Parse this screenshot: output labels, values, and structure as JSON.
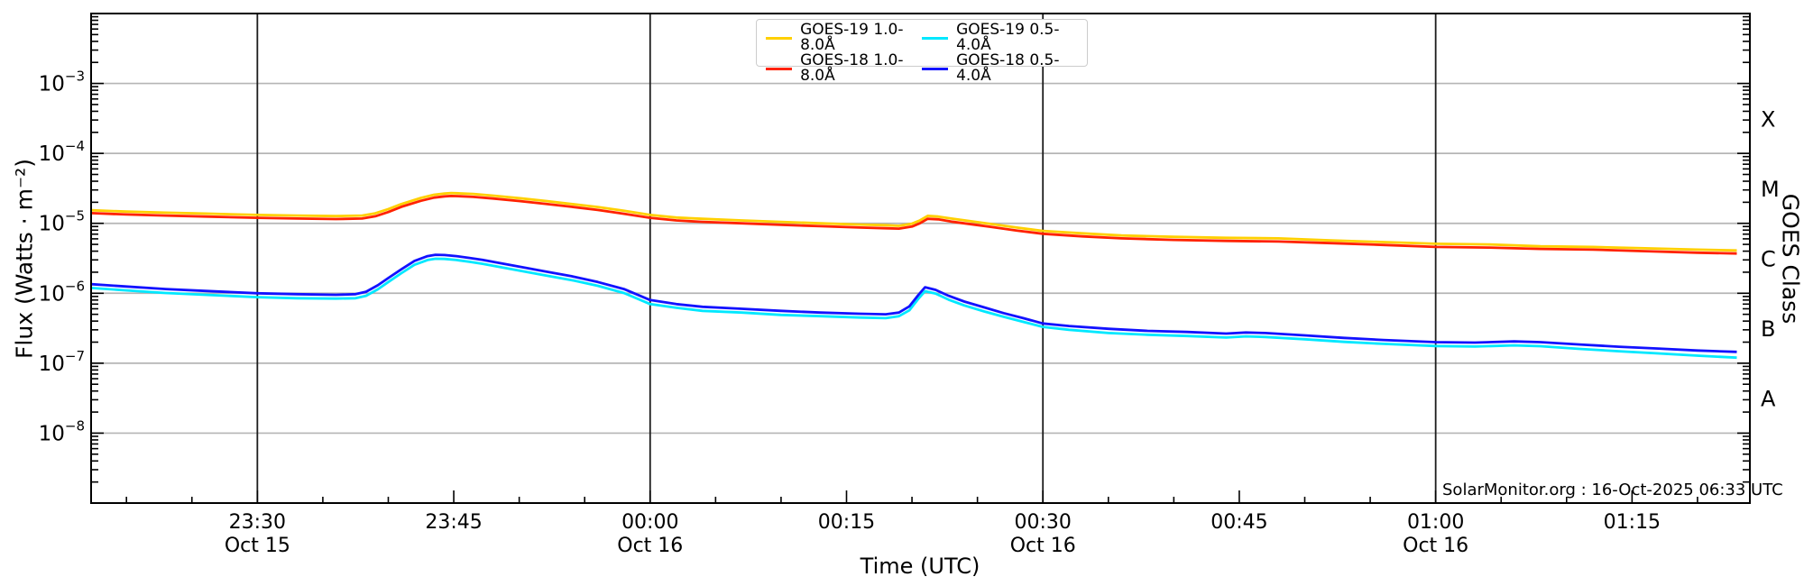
{
  "figure": {
    "xlabel": "Time (UTC)",
    "ylabel": "Flux (Watts · m⁻²)",
    "ylabel_right": "GOES Class",
    "annotation": "SolarMonitor.org : 16-Oct-2025 06:33 UTC"
  },
  "chart_data": {
    "type": "line",
    "title": "",
    "xlabel": "Time (UTC)",
    "ylabel": "Flux (Watts · m⁻²)",
    "ylabel_right": "GOES Class",
    "annotation": "SolarMonitor.org : 16-Oct-2025 06:33 UTC",
    "legend_position": "top-center",
    "grid": true,
    "x_axis": {
      "unit": "minutes after 2025-10-15 23:00 UTC",
      "min": 17.3,
      "max": 144,
      "minor_tick_step_minutes": 5,
      "ticks": [
        {
          "t": 30,
          "label": "23:30",
          "date": "Oct 15"
        },
        {
          "t": 45,
          "label": "23:45",
          "date": ""
        },
        {
          "t": 60,
          "label": "00:00",
          "date": "Oct 16"
        },
        {
          "t": 75,
          "label": "00:15",
          "date": ""
        },
        {
          "t": 90,
          "label": "00:30",
          "date": "Oct 16"
        },
        {
          "t": 105,
          "label": "00:45",
          "date": ""
        },
        {
          "t": 120,
          "label": "01:00",
          "date": "Oct 16"
        },
        {
          "t": 135,
          "label": "01:15",
          "date": ""
        }
      ],
      "vertical_gridlines_t": [
        30,
        60,
        90,
        120
      ]
    },
    "y_axis": {
      "scale": "log10",
      "min_exp": -9,
      "max_exp": -2,
      "tick_exponents": [
        -3,
        -4,
        -5,
        -6,
        -7,
        -8
      ],
      "gridline_exponents": [
        -3,
        -4,
        -5,
        -6,
        -7,
        -8
      ]
    },
    "right_axis_classes": [
      {
        "label": "X",
        "center_exp": -3.5
      },
      {
        "label": "M",
        "center_exp": -4.5
      },
      {
        "label": "C",
        "center_exp": -5.5
      },
      {
        "label": "B",
        "center_exp": -6.5
      },
      {
        "label": "A",
        "center_exp": -7.5
      }
    ],
    "colors": {
      "grid_h": "#b5b5b5",
      "grid_v": "#1c1c1c",
      "frame": "#000000",
      "text": "#000000"
    },
    "series": [
      {
        "name": "GOES-19 1.0-8.0Å",
        "color": "#ffd000",
        "points": [
          [
            17.3,
            1.54e-05
          ],
          [
            20,
            1.47e-05
          ],
          [
            23,
            1.42e-05
          ],
          [
            26,
            1.38e-05
          ],
          [
            30,
            1.32e-05
          ],
          [
            33,
            1.29e-05
          ],
          [
            36,
            1.27e-05
          ],
          [
            38,
            1.29e-05
          ],
          [
            39,
            1.39e-05
          ],
          [
            40,
            1.6e-05
          ],
          [
            41,
            1.89e-05
          ],
          [
            42.5,
            2.31e-05
          ],
          [
            43.5,
            2.56e-05
          ],
          [
            44.3,
            2.67e-05
          ],
          [
            44.8,
            2.71e-05
          ],
          [
            45.5,
            2.68e-05
          ],
          [
            46.5,
            2.63e-05
          ],
          [
            48,
            2.49e-05
          ],
          [
            50,
            2.29e-05
          ],
          [
            52,
            2.09e-05
          ],
          [
            54,
            1.89e-05
          ],
          [
            56,
            1.71e-05
          ],
          [
            58,
            1.51e-05
          ],
          [
            60,
            1.32e-05
          ],
          [
            62,
            1.21e-05
          ],
          [
            64,
            1.16e-05
          ],
          [
            67,
            1.1e-05
          ],
          [
            70,
            1.05e-05
          ],
          [
            73,
            1e-05
          ],
          [
            76,
            9.6e-06
          ],
          [
            78,
            9.4e-06
          ],
          [
            79,
            9.2e-06
          ],
          [
            80,
            9.9e-06
          ],
          [
            80.6,
            1.1e-05
          ],
          [
            81.2,
            1.28e-05
          ],
          [
            82,
            1.25e-05
          ],
          [
            83,
            1.17e-05
          ],
          [
            84.5,
            1.07e-05
          ],
          [
            86,
            9.8e-06
          ],
          [
            88,
            8.7e-06
          ],
          [
            90,
            7.8e-06
          ],
          [
            93,
            7.2e-06
          ],
          [
            96,
            6.7e-06
          ],
          [
            100,
            6.4e-06
          ],
          [
            104,
            6.2e-06
          ],
          [
            108,
            6.1e-06
          ],
          [
            112,
            5.7e-06
          ],
          [
            116,
            5.4e-06
          ],
          [
            120,
            5.1e-06
          ],
          [
            124,
            5e-06
          ],
          [
            128,
            4.7e-06
          ],
          [
            132,
            4.6e-06
          ],
          [
            136,
            4.4e-06
          ],
          [
            140,
            4.2e-06
          ],
          [
            143,
            4.1e-06
          ]
        ]
      },
      {
        "name": "GOES-18 1.0-8.0Å",
        "color": "#ff2200",
        "points": [
          [
            17.3,
            1.4e-05
          ],
          [
            20,
            1.34e-05
          ],
          [
            23,
            1.29e-05
          ],
          [
            26,
            1.25e-05
          ],
          [
            30,
            1.2e-05
          ],
          [
            33,
            1.17e-05
          ],
          [
            36,
            1.15e-05
          ],
          [
            38,
            1.17e-05
          ],
          [
            39,
            1.26e-05
          ],
          [
            40,
            1.45e-05
          ],
          [
            41,
            1.72e-05
          ],
          [
            42.5,
            2.1e-05
          ],
          [
            43.5,
            2.33e-05
          ],
          [
            44.3,
            2.43e-05
          ],
          [
            44.8,
            2.46e-05
          ],
          [
            45.5,
            2.44e-05
          ],
          [
            46.5,
            2.39e-05
          ],
          [
            48,
            2.26e-05
          ],
          [
            50,
            2.08e-05
          ],
          [
            52,
            1.9e-05
          ],
          [
            54,
            1.72e-05
          ],
          [
            56,
            1.55e-05
          ],
          [
            58,
            1.37e-05
          ],
          [
            60,
            1.2e-05
          ],
          [
            62,
            1.1e-05
          ],
          [
            64,
            1.05e-05
          ],
          [
            67,
            1e-05
          ],
          [
            70,
            9.5e-06
          ],
          [
            73,
            9.1e-06
          ],
          [
            76,
            8.7e-06
          ],
          [
            78,
            8.5e-06
          ],
          [
            79,
            8.4e-06
          ],
          [
            80,
            9e-06
          ],
          [
            80.6,
            1e-05
          ],
          [
            81.2,
            1.16e-05
          ],
          [
            82,
            1.14e-05
          ],
          [
            83,
            1.06e-05
          ],
          [
            84.5,
            9.7e-06
          ],
          [
            86,
            8.9e-06
          ],
          [
            88,
            7.9e-06
          ],
          [
            90,
            7.1e-06
          ],
          [
            93,
            6.5e-06
          ],
          [
            96,
            6.1e-06
          ],
          [
            100,
            5.8e-06
          ],
          [
            104,
            5.6e-06
          ],
          [
            108,
            5.5e-06
          ],
          [
            112,
            5.2e-06
          ],
          [
            116,
            4.9e-06
          ],
          [
            120,
            4.6e-06
          ],
          [
            124,
            4.5e-06
          ],
          [
            128,
            4.3e-06
          ],
          [
            132,
            4.2e-06
          ],
          [
            136,
            4e-06
          ],
          [
            140,
            3.8e-06
          ],
          [
            143,
            3.7e-06
          ]
        ]
      },
      {
        "name": "GOES-19 0.5-4.0Å",
        "color": "#00e8ff",
        "points": [
          [
            17.3,
            1.19e-06
          ],
          [
            20,
            1.1e-06
          ],
          [
            23,
            1.01e-06
          ],
          [
            26,
            9.5e-07
          ],
          [
            30,
            8.8e-07
          ],
          [
            33,
            8.5e-07
          ],
          [
            36,
            8.4e-07
          ],
          [
            37.5,
            8.5e-07
          ],
          [
            38.3,
            9.2e-07
          ],
          [
            39.2,
            1.14e-06
          ],
          [
            40,
            1.45e-06
          ],
          [
            41,
            1.94e-06
          ],
          [
            42,
            2.55e-06
          ],
          [
            43,
            2.99e-06
          ],
          [
            43.6,
            3.12e-06
          ],
          [
            44.3,
            3.1e-06
          ],
          [
            45.2,
            2.99e-06
          ],
          [
            46.2,
            2.82e-06
          ],
          [
            47.2,
            2.64e-06
          ],
          [
            48.5,
            2.38e-06
          ],
          [
            50,
            2.11e-06
          ],
          [
            52,
            1.8e-06
          ],
          [
            54,
            1.54e-06
          ],
          [
            56,
            1.28e-06
          ],
          [
            58,
            1.01e-06
          ],
          [
            60,
            7e-07
          ],
          [
            62,
            6.2e-07
          ],
          [
            64,
            5.6e-07
          ],
          [
            67,
            5.3e-07
          ],
          [
            70,
            4.9e-07
          ],
          [
            73,
            4.7e-07
          ],
          [
            76,
            4.5e-07
          ],
          [
            78,
            4.4e-07
          ],
          [
            79,
            4.7e-07
          ],
          [
            79.8,
            5.7e-07
          ],
          [
            80.5,
            8.4e-07
          ],
          [
            81,
            1.07e-06
          ],
          [
            81.8,
            9.9e-07
          ],
          [
            82.8,
            8.1e-07
          ],
          [
            84,
            6.7e-07
          ],
          [
            85.5,
            5.5e-07
          ],
          [
            87,
            4.6e-07
          ],
          [
            88.5,
            3.9e-07
          ],
          [
            90,
            3.3e-07
          ],
          [
            92,
            3e-07
          ],
          [
            95,
            2.7e-07
          ],
          [
            98,
            2.55e-07
          ],
          [
            101,
            2.45e-07
          ],
          [
            104,
            2.33e-07
          ],
          [
            105.5,
            2.42e-07
          ],
          [
            107,
            2.37e-07
          ],
          [
            110,
            2.2e-07
          ],
          [
            113,
            2.02e-07
          ],
          [
            116,
            1.89e-07
          ],
          [
            120,
            1.76e-07
          ],
          [
            123,
            1.73e-07
          ],
          [
            126,
            1.8e-07
          ],
          [
            128,
            1.75e-07
          ],
          [
            131,
            1.6e-07
          ],
          [
            134,
            1.48e-07
          ],
          [
            137,
            1.38e-07
          ],
          [
            140,
            1.28e-07
          ],
          [
            143,
            1.2e-07
          ]
        ]
      },
      {
        "name": "GOES-18 0.5-4.0Å",
        "color": "#1212ff",
        "points": [
          [
            17.3,
            1.35e-06
          ],
          [
            20,
            1.25e-06
          ],
          [
            23,
            1.15e-06
          ],
          [
            26,
            1.08e-06
          ],
          [
            30,
            1e-06
          ],
          [
            33,
            9.7e-07
          ],
          [
            36,
            9.5e-07
          ],
          [
            37.5,
            9.7e-07
          ],
          [
            38.3,
            1.05e-06
          ],
          [
            39.2,
            1.3e-06
          ],
          [
            40,
            1.65e-06
          ],
          [
            41,
            2.2e-06
          ],
          [
            42,
            2.9e-06
          ],
          [
            43,
            3.4e-06
          ],
          [
            43.6,
            3.55e-06
          ],
          [
            44.3,
            3.52e-06
          ],
          [
            45.2,
            3.4e-06
          ],
          [
            46.2,
            3.2e-06
          ],
          [
            47.2,
            3e-06
          ],
          [
            48.5,
            2.7e-06
          ],
          [
            50,
            2.4e-06
          ],
          [
            52,
            2.05e-06
          ],
          [
            54,
            1.75e-06
          ],
          [
            56,
            1.45e-06
          ],
          [
            58,
            1.15e-06
          ],
          [
            60,
            8e-07
          ],
          [
            62,
            7e-07
          ],
          [
            64,
            6.4e-07
          ],
          [
            67,
            6e-07
          ],
          [
            70,
            5.6e-07
          ],
          [
            73,
            5.3e-07
          ],
          [
            76,
            5.1e-07
          ],
          [
            78,
            5e-07
          ],
          [
            79,
            5.3e-07
          ],
          [
            79.8,
            6.5e-07
          ],
          [
            80.5,
            9.5e-07
          ],
          [
            81,
            1.22e-06
          ],
          [
            81.8,
            1.12e-06
          ],
          [
            82.8,
            9.2e-07
          ],
          [
            84,
            7.6e-07
          ],
          [
            85.5,
            6.3e-07
          ],
          [
            87,
            5.2e-07
          ],
          [
            88.5,
            4.4e-07
          ],
          [
            90,
            3.7e-07
          ],
          [
            92,
            3.4e-07
          ],
          [
            95,
            3.1e-07
          ],
          [
            98,
            2.9e-07
          ],
          [
            101,
            2.8e-07
          ],
          [
            104,
            2.65e-07
          ],
          [
            105.5,
            2.75e-07
          ],
          [
            107,
            2.7e-07
          ],
          [
            110,
            2.5e-07
          ],
          [
            113,
            2.3e-07
          ],
          [
            116,
            2.15e-07
          ],
          [
            120,
            2e-07
          ],
          [
            123,
            1.97e-07
          ],
          [
            126,
            2.05e-07
          ],
          [
            128,
            2e-07
          ],
          [
            131,
            1.85e-07
          ],
          [
            134,
            1.72e-07
          ],
          [
            137,
            1.62e-07
          ],
          [
            140,
            1.52e-07
          ],
          [
            143,
            1.45e-07
          ]
        ]
      }
    ]
  }
}
